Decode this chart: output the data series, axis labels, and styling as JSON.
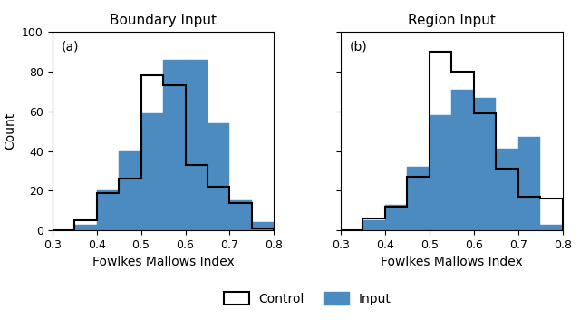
{
  "title_a": "Boundary Input",
  "title_b": "Region Input",
  "xlabel": "Fowlkes Mallows Index",
  "ylabel": "Count",
  "label_a": "(a)",
  "label_b": "(b)",
  "xlim": [
    0.3,
    0.8
  ],
  "ylim": [
    0,
    100
  ],
  "yticks": [
    0,
    20,
    40,
    60,
    80,
    100
  ],
  "xticks": [
    0.3,
    0.4,
    0.5,
    0.6,
    0.7,
    0.8
  ],
  "bin_edges": [
    0.3,
    0.35,
    0.4,
    0.45,
    0.5,
    0.55,
    0.6,
    0.65,
    0.7,
    0.75,
    0.8
  ],
  "a_input": [
    0,
    3,
    20,
    40,
    59,
    86,
    86,
    54,
    15,
    4,
    0
  ],
  "a_control": [
    0,
    5,
    19,
    26,
    78,
    73,
    33,
    22,
    14,
    1,
    0
  ],
  "b_input": [
    0,
    5,
    13,
    32,
    58,
    71,
    67,
    41,
    47,
    3,
    0
  ],
  "b_control": [
    0,
    6,
    12,
    27,
    90,
    80,
    59,
    31,
    17,
    16,
    0
  ],
  "fill_color": "#4b8bbf",
  "control_edgecolor": "#000000",
  "legend_control": "Control",
  "legend_input": "Input"
}
